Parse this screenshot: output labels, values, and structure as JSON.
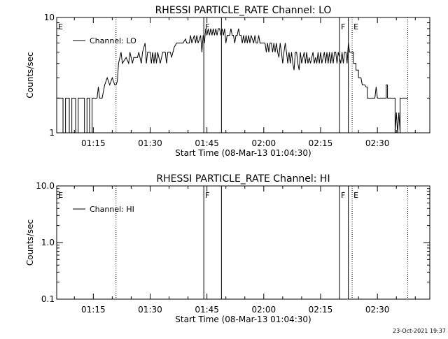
{
  "footer_timestamp": "23-Oct-2021 19:37",
  "chart_data": [
    {
      "type": "line",
      "title": "RHESSI PARTICLE_RATE Channel: LO",
      "xlabel": "Start Time (08-Mar-13 01:04:30)",
      "ylabel": "Counts/sec",
      "yscale": "log",
      "ylim": [
        1,
        10
      ],
      "y_ticks": [
        {
          "value": 1,
          "label": "1"
        },
        {
          "value": 10,
          "label": "10"
        }
      ],
      "xlim": [
        "01:05:20",
        "02:43:50"
      ],
      "x_ticks": [
        {
          "value": "01:15",
          "label": "01:15"
        },
        {
          "value": "01:30",
          "label": "01:30"
        },
        {
          "value": "01:45",
          "label": "01:45"
        },
        {
          "value": "02:00",
          "label": "02:00"
        },
        {
          "value": "02:15",
          "label": "02:15"
        },
        {
          "value": "02:30",
          "label": "02:30"
        }
      ],
      "legend": {
        "position": "top-left"
      },
      "series": [
        {
          "name": "Channel: LO",
          "color": "#000000",
          "points": [
            [
              "01:05:20",
              2
            ],
            [
              "01:07:00",
              2
            ],
            [
              "01:07:00",
              1
            ],
            [
              "01:07:40",
              1
            ],
            [
              "01:07:40",
              2
            ],
            [
              "01:08:40",
              2
            ],
            [
              "01:08:40",
              1
            ],
            [
              "01:09:20",
              1
            ],
            [
              "01:09:20",
              2
            ],
            [
              "01:10:20",
              2
            ],
            [
              "01:10:20",
              1
            ],
            [
              "01:11:00",
              1
            ],
            [
              "01:11:00",
              2
            ],
            [
              "01:12:40",
              2
            ],
            [
              "01:12:40",
              1
            ],
            [
              "01:13:20",
              1
            ],
            [
              "01:13:20",
              2
            ],
            [
              "01:14:00",
              2
            ],
            [
              "01:14:00",
              1
            ],
            [
              "01:14:40",
              1
            ],
            [
              "01:14:40",
              2
            ],
            [
              "01:16:00",
              2
            ],
            [
              "01:16:20",
              2.5
            ],
            [
              "01:16:40",
              2
            ],
            [
              "01:17:20",
              2
            ],
            [
              "01:18:00",
              2.6
            ],
            [
              "01:18:40",
              3
            ],
            [
              "01:19:20",
              2.6
            ],
            [
              "01:20:00",
              3
            ],
            [
              "01:20:40",
              2.6
            ],
            [
              "01:21:00",
              2.6
            ],
            [
              "01:21:20",
              2.8
            ],
            [
              "01:21:40",
              4
            ],
            [
              "01:22:20",
              5
            ],
            [
              "01:22:40",
              4
            ],
            [
              "01:23:40",
              4.5
            ],
            [
              "01:24:20",
              4
            ],
            [
              "01:24:40",
              5
            ],
            [
              "01:25:20",
              4
            ],
            [
              "01:25:40",
              4.5
            ],
            [
              "01:26:40",
              4.5
            ],
            [
              "01:27:00",
              5
            ],
            [
              "01:27:40",
              4
            ],
            [
              "01:28:00",
              5
            ],
            [
              "01:28:40",
              6
            ],
            [
              "01:29:00",
              4
            ],
            [
              "01:29:20",
              5
            ],
            [
              "01:30:00",
              5
            ],
            [
              "01:30:20",
              4
            ],
            [
              "01:30:40",
              5
            ],
            [
              "01:31:00",
              4
            ],
            [
              "01:31:20",
              5
            ],
            [
              "01:31:40",
              4
            ],
            [
              "01:32:00",
              5
            ],
            [
              "01:32:40",
              4
            ],
            [
              "01:33:20",
              5
            ],
            [
              "01:34:00",
              5
            ],
            [
              "01:34:20",
              4
            ],
            [
              "01:34:40",
              5
            ],
            [
              "01:35:20",
              5
            ],
            [
              "01:35:40",
              4.5
            ],
            [
              "01:36:20",
              5.5
            ],
            [
              "01:37:00",
              6
            ],
            [
              "01:37:40",
              6
            ],
            [
              "01:38:00",
              6
            ],
            [
              "01:38:40",
              6
            ],
            [
              "01:39:20",
              6.5
            ],
            [
              "01:39:40",
              6
            ],
            [
              "01:40:20",
              6
            ],
            [
              "01:40:40",
              7
            ],
            [
              "01:41:00",
              6
            ],
            [
              "01:41:40",
              7
            ],
            [
              "01:42:00",
              6
            ],
            [
              "01:42:20",
              7
            ],
            [
              "01:42:40",
              6
            ],
            [
              "01:43:20",
              7
            ],
            [
              "01:43:40",
              5
            ],
            [
              "01:44:00",
              7
            ],
            [
              "01:44:20",
              6
            ],
            [
              "01:44:40",
              8
            ],
            [
              "01:45:00",
              7
            ],
            [
              "01:45:20",
              8
            ],
            [
              "01:45:40",
              7
            ],
            [
              "01:46:00",
              8
            ],
            [
              "01:46:20",
              7
            ],
            [
              "01:46:40",
              8
            ],
            [
              "01:47:00",
              7
            ],
            [
              "01:47:20",
              8
            ],
            [
              "01:47:40",
              7
            ],
            [
              "01:48:00",
              8
            ],
            [
              "01:48:20",
              8
            ],
            [
              "01:48:40",
              7
            ],
            [
              "01:49:00",
              8
            ],
            [
              "01:49:20",
              7
            ],
            [
              "01:49:40",
              8
            ],
            [
              "01:50:00",
              6
            ],
            [
              "01:50:20",
              7
            ],
            [
              "01:51:00",
              7
            ],
            [
              "01:51:20",
              8
            ],
            [
              "01:51:40",
              7
            ],
            [
              "01:52:00",
              7
            ],
            [
              "01:52:20",
              6
            ],
            [
              "01:52:40",
              7
            ],
            [
              "01:53:00",
              7
            ],
            [
              "01:53:20",
              8
            ],
            [
              "01:53:40",
              7
            ],
            [
              "01:54:00",
              7
            ],
            [
              "01:54:20",
              6
            ],
            [
              "01:54:40",
              7
            ],
            [
              "01:55:00",
              6
            ],
            [
              "01:55:20",
              7
            ],
            [
              "01:55:40",
              6
            ],
            [
              "01:56:00",
              7
            ],
            [
              "01:56:20",
              6
            ],
            [
              "01:56:40",
              7
            ],
            [
              "01:57:20",
              6
            ],
            [
              "01:57:40",
              7
            ],
            [
              "01:58:00",
              6
            ],
            [
              "01:58:20",
              6
            ],
            [
              "01:58:40",
              7
            ],
            [
              "01:59:00",
              6
            ],
            [
              "01:59:20",
              6
            ],
            [
              "01:59:40",
              6
            ],
            [
              "02:00:20",
              6
            ],
            [
              "02:00:40",
              5
            ],
            [
              "02:01:00",
              6
            ],
            [
              "02:01:20",
              5
            ],
            [
              "02:01:40",
              6
            ],
            [
              "02:02:00",
              6
            ],
            [
              "02:02:20",
              5
            ],
            [
              "02:02:40",
              6
            ],
            [
              "02:03:00",
              5
            ],
            [
              "02:03:20",
              6
            ],
            [
              "02:03:40",
              5
            ],
            [
              "02:04:00",
              4.5
            ],
            [
              "02:04:20",
              6
            ],
            [
              "02:04:40",
              5
            ],
            [
              "02:05:00",
              4
            ],
            [
              "02:05:20",
              5
            ],
            [
              "02:05:40",
              6
            ],
            [
              "02:06:00",
              5
            ],
            [
              "02:06:20",
              4
            ],
            [
              "02:06:40",
              5
            ],
            [
              "02:07:00",
              4
            ],
            [
              "02:07:20",
              5
            ],
            [
              "02:07:40",
              4
            ],
            [
              "02:08:00",
              3.5
            ],
            [
              "02:08:20",
              5
            ],
            [
              "02:08:40",
              5
            ],
            [
              "02:09:00",
              4
            ],
            [
              "02:09:20",
              3.5
            ],
            [
              "02:09:40",
              5
            ],
            [
              "02:10:00",
              4
            ],
            [
              "02:10:40",
              5
            ],
            [
              "02:11:00",
              4
            ],
            [
              "02:11:20",
              5
            ],
            [
              "02:11:40",
              4
            ],
            [
              "02:12:00",
              4.5
            ],
            [
              "02:12:20",
              4
            ],
            [
              "02:13:00",
              5
            ],
            [
              "02:13:20",
              4
            ],
            [
              "02:13:40",
              4.5
            ],
            [
              "02:14:00",
              4
            ],
            [
              "02:14:20",
              5
            ],
            [
              "02:14:40",
              4
            ],
            [
              "02:15:00",
              5
            ],
            [
              "02:15:20",
              4
            ],
            [
              "02:16:00",
              5
            ],
            [
              "02:16:20",
              4
            ],
            [
              "02:16:40",
              5
            ],
            [
              "02:17:00",
              4
            ],
            [
              "02:17:20",
              5
            ],
            [
              "02:17:40",
              4
            ],
            [
              "02:18:00",
              5
            ],
            [
              "02:18:20",
              4
            ],
            [
              "02:18:40",
              5
            ],
            [
              "02:19:00",
              5
            ],
            [
              "02:19:20",
              4
            ],
            [
              "02:19:40",
              5
            ],
            [
              "02:20:20",
              4
            ],
            [
              "02:20:40",
              5
            ],
            [
              "02:21:00",
              4
            ],
            [
              "02:21:20",
              5
            ],
            [
              "02:21:40",
              5
            ],
            [
              "02:22:00",
              4
            ],
            [
              "02:22:20",
              6
            ],
            [
              "02:22:40",
              5
            ],
            [
              "02:23:40",
              5
            ],
            [
              "02:23:40",
              4
            ],
            [
              "02:24:20",
              4
            ],
            [
              "02:24:20",
              3.5
            ],
            [
              "02:25:00",
              3.5
            ],
            [
              "02:25:00",
              3
            ],
            [
              "02:25:40",
              3
            ],
            [
              "02:26:00",
              2.6
            ],
            [
              "02:26:40",
              2.6
            ],
            [
              "02:27:00",
              2.5
            ],
            [
              "02:27:20",
              2.5
            ],
            [
              "02:27:20",
              2
            ],
            [
              "02:29:20",
              2
            ],
            [
              "02:29:40",
              2.5
            ],
            [
              "02:30:00",
              2
            ],
            [
              "02:32:20",
              2
            ],
            [
              "02:32:20",
              2.6
            ],
            [
              "02:32:40",
              2.6
            ],
            [
              "02:32:40",
              2
            ],
            [
              "02:34:40",
              2
            ],
            [
              "02:34:40",
              1
            ],
            [
              "02:35:00",
              1.5
            ],
            [
              "02:35:20",
              1
            ],
            [
              "02:35:40",
              1.5
            ],
            [
              "02:36:00",
              1
            ],
            [
              "02:36:00",
              2
            ],
            [
              "02:38:00",
              2
            ]
          ]
        }
      ],
      "markers": [
        {
          "time": "01:05:20",
          "style": "dotted",
          "label": "E"
        },
        {
          "time": "01:21:00",
          "style": "dotted",
          "label": ""
        },
        {
          "time": "01:44:10",
          "style": "solid",
          "label": "F"
        },
        {
          "time": "01:48:50",
          "style": "solid",
          "label": ""
        },
        {
          "time": "02:20:00",
          "style": "solid",
          "label": "F"
        },
        {
          "time": "02:22:20",
          "style": "solid",
          "label": ""
        },
        {
          "time": "02:23:20",
          "style": "dotted",
          "label": "E"
        },
        {
          "time": "02:38:00",
          "style": "dotted",
          "label": ""
        }
      ]
    },
    {
      "type": "line",
      "title": "RHESSI PARTICLE_RATE Channel: HI",
      "xlabel": "Start Time (08-Mar-13 01:04:30)",
      "ylabel": "Counts/sec",
      "yscale": "log",
      "ylim": [
        0.1,
        10
      ],
      "y_ticks": [
        {
          "value": 0.1,
          "label": "0.1"
        },
        {
          "value": 1,
          "label": "1.0"
        },
        {
          "value": 10,
          "label": "10.0"
        }
      ],
      "xlim": [
        "01:05:20",
        "02:43:50"
      ],
      "x_ticks": [
        {
          "value": "01:15",
          "label": "01:15"
        },
        {
          "value": "01:30",
          "label": "01:30"
        },
        {
          "value": "01:45",
          "label": "01:45"
        },
        {
          "value": "02:00",
          "label": "02:00"
        },
        {
          "value": "02:15",
          "label": "02:15"
        },
        {
          "value": "02:30",
          "label": "02:30"
        }
      ],
      "legend": {
        "position": "top-left"
      },
      "series": [
        {
          "name": "Channel: HI",
          "color": "#000000",
          "points": []
        }
      ],
      "markers": [
        {
          "time": "01:05:20",
          "style": "dotted",
          "label": "E"
        },
        {
          "time": "01:21:00",
          "style": "dotted",
          "label": ""
        },
        {
          "time": "01:44:10",
          "style": "solid",
          "label": "F"
        },
        {
          "time": "01:48:50",
          "style": "solid",
          "label": ""
        },
        {
          "time": "02:20:00",
          "style": "solid",
          "label": "F"
        },
        {
          "time": "02:22:20",
          "style": "solid",
          "label": ""
        },
        {
          "time": "02:23:20",
          "style": "dotted",
          "label": "E"
        },
        {
          "time": "02:38:00",
          "style": "dotted",
          "label": ""
        }
      ]
    }
  ]
}
